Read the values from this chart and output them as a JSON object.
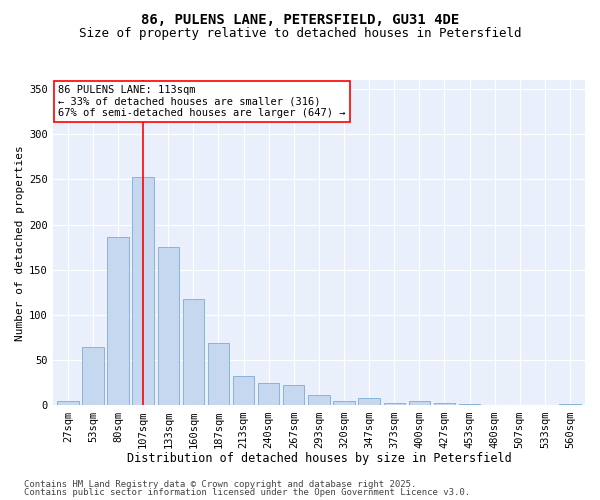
{
  "title1": "86, PULENS LANE, PETERSFIELD, GU31 4DE",
  "title2": "Size of property relative to detached houses in Petersfield",
  "xlabel": "Distribution of detached houses by size in Petersfield",
  "ylabel": "Number of detached properties",
  "categories": [
    "27sqm",
    "53sqm",
    "80sqm",
    "107sqm",
    "133sqm",
    "160sqm",
    "187sqm",
    "213sqm",
    "240sqm",
    "267sqm",
    "293sqm",
    "320sqm",
    "347sqm",
    "373sqm",
    "400sqm",
    "427sqm",
    "453sqm",
    "480sqm",
    "507sqm",
    "533sqm",
    "560sqm"
  ],
  "values": [
    5,
    65,
    186,
    253,
    175,
    118,
    69,
    33,
    25,
    23,
    12,
    5,
    8,
    3,
    5,
    3,
    2,
    0,
    1,
    0,
    2
  ],
  "bar_color": "#c5d8f0",
  "bar_edge_color": "#7aadd4",
  "vline_x_index": 3,
  "vline_color": "red",
  "annotation_line1": "86 PULENS LANE: 113sqm",
  "annotation_line2": "← 33% of detached houses are smaller (316)",
  "annotation_line3": "67% of semi-detached houses are larger (647) →",
  "annotation_box_color": "white",
  "annotation_box_edge_color": "red",
  "ylim": [
    0,
    360
  ],
  "yticks": [
    0,
    50,
    100,
    150,
    200,
    250,
    300,
    350
  ],
  "bg_color": "#eaf0fb",
  "footer1": "Contains HM Land Registry data © Crown copyright and database right 2025.",
  "footer2": "Contains public sector information licensed under the Open Government Licence v3.0.",
  "title_fontsize": 10,
  "subtitle_fontsize": 9,
  "xlabel_fontsize": 8.5,
  "ylabel_fontsize": 8,
  "tick_fontsize": 7.5,
  "annotation_fontsize": 7.5,
  "footer_fontsize": 6.5
}
